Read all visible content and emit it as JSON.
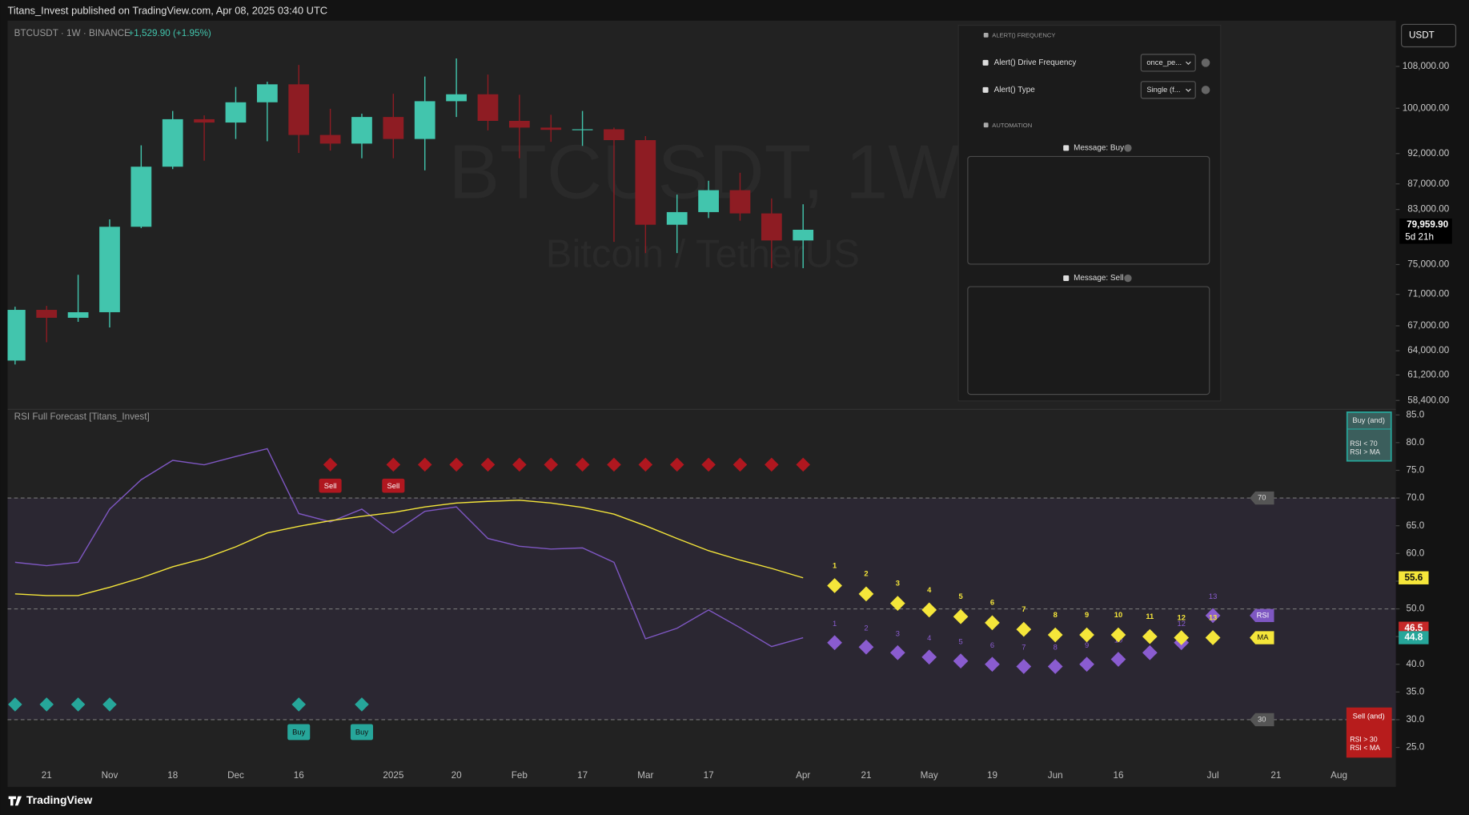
{
  "header": "Titans_Invest published on TradingView.com, Apr 08, 2025 03:40 UTC",
  "footer": "TradingView",
  "settings_panel": {
    "section_1": "ALERT() FREQUENCY",
    "frequency_label": "Alert() Drive Frequency",
    "frequency_value": "once_pe...",
    "type_label": "Alert() Type",
    "type_value": "Single (f...",
    "section_2": "AUTOMATION",
    "message_buy": "Message: Buy",
    "message_sell": "Message: Sell"
  },
  "chart_data": [
    {
      "type": "candlestick",
      "title": "BTCUSDT · 1W · BINANCE",
      "subtitle": "+1,529.90 (+1.95%)",
      "watermark": "BTCUSDT, 1W",
      "watermark_subtitle": "Bitcoin / TetherUS",
      "currency": "USDT",
      "x_labels": [
        "21",
        "Nov",
        "18",
        "Dec",
        "16",
        "2025",
        "20",
        "Feb",
        "17",
        "Mar",
        "17",
        "Apr",
        "21",
        "May",
        "19",
        "Jun",
        "16",
        "Jul",
        "21",
        "Aug"
      ],
      "open": [
        62850,
        69000,
        68000,
        68700,
        80400,
        89800,
        98000,
        97400,
        101100,
        104500,
        95200,
        93700,
        98400,
        94500,
        101300,
        102600,
        97700,
        96500,
        96100,
        96200,
        94300,
        80700,
        82600,
        86000,
        82400,
        78400
      ],
      "high": [
        69400,
        69500,
        73600,
        81500,
        93400,
        99500,
        98700,
        104000,
        105000,
        108300,
        99900,
        99000,
        102700,
        106000,
        109600,
        106400,
        102500,
        98800,
        99500,
        96500,
        95000,
        85300,
        87500,
        88800,
        84700,
        83800
      ],
      "low": [
        62400,
        65000,
        67500,
        66800,
        80200,
        89400,
        90800,
        94500,
        94100,
        92100,
        92500,
        91200,
        91200,
        89200,
        98400,
        96000,
        91200,
        94000,
        93300,
        78200,
        76600,
        76600,
        81700,
        81300,
        74500,
        74500
      ],
      "close": [
        69000,
        68000,
        68700,
        80400,
        89800,
        98000,
        97400,
        101100,
        104500,
        95200,
        93700,
        98400,
        94500,
        101300,
        102600,
        97700,
        96500,
        96100,
        96200,
        94300,
        80700,
        82600,
        86000,
        82400,
        78400,
        79959.9
      ],
      "close_label": "79,959.90",
      "countdown": "5d 21h",
      "up_color": "#42c5ad",
      "down_color": "#8e1c23",
      "log": true,
      "ylim": [
        57650,
        117500
      ],
      "yticks": [
        {
          "value": 108000,
          "label": "108,000.00"
        },
        {
          "value": 100000,
          "label": "100,000.00"
        },
        {
          "value": 92000,
          "label": "92,000.00"
        },
        {
          "value": 87000,
          "label": "87,000.00"
        },
        {
          "value": 83000,
          "label": "83,000.00"
        },
        {
          "value": 75000,
          "label": "75,000.00"
        },
        {
          "value": 71000,
          "label": "71,000.00"
        },
        {
          "value": 67000,
          "label": "67,000.00"
        },
        {
          "value": 64000,
          "label": "64,000.00"
        },
        {
          "value": 61200,
          "label": "61,200.00"
        },
        {
          "value": 58400,
          "label": "58,400.00"
        }
      ]
    },
    {
      "type": "line",
      "title": "RSI Full Forecast [Titans_Invest]",
      "series": [
        {
          "name": "RSI",
          "color": "#7e57c2",
          "values": [
            58.4,
            57.8,
            58.4,
            68,
            73.3,
            76.8,
            76,
            77.5,
            78.9,
            67.2,
            65.7,
            68,
            63.7,
            67.6,
            68.4,
            62.7,
            61.3,
            60.8,
            61,
            58.4,
            44.6,
            46.5,
            49.8,
            46.6,
            43.2,
            44.8
          ]
        },
        {
          "name": "MA",
          "color": "#f5e63a",
          "values": [
            52.7,
            52.4,
            52.4,
            53.9,
            55.6,
            57.6,
            59.1,
            61.2,
            63.7,
            64.9,
            65.9,
            66.7,
            67.4,
            68.4,
            69.1,
            69.4,
            69.6,
            69.1,
            68.3,
            67.1,
            65,
            62.7,
            60.5,
            58.8,
            57.3,
            55.6
          ]
        }
      ],
      "upper": 70,
      "middle": 50,
      "lower": 30,
      "sell_markers": [
        10,
        12,
        13,
        14,
        15,
        16,
        17,
        18,
        19,
        20,
        21,
        22,
        23,
        24,
        25
      ],
      "buy_markers": [
        0,
        1,
        2,
        3,
        9,
        11
      ],
      "sell_tags": [
        10,
        12
      ],
      "buy_tags": [
        9,
        11
      ],
      "sell_label": "Sell",
      "buy_label": "Buy",
      "sell_color": "#b0171f",
      "buy_color": "#26a69a",
      "forecast": {
        "steps": [
          1,
          2,
          3,
          4,
          5,
          6,
          7,
          8,
          9,
          10,
          11,
          12,
          13
        ],
        "rsi": [
          43.9,
          43.1,
          42.1,
          41.3,
          40.6,
          40,
          39.6,
          39.6,
          40,
          40.9,
          42.1,
          43.9,
          48.8
        ],
        "ma": [
          54.2,
          52.7,
          51,
          49.8,
          48.6,
          47.5,
          46.3,
          45.3,
          45.3,
          45.3,
          45,
          44.8,
          44.8
        ]
      },
      "value_badges": [
        55.6,
        46.5,
        44.8
      ],
      "value_badge_colors": [
        "#f5e63a",
        "#c62828",
        "#26a69a"
      ],
      "buy_box": {
        "title": "Buy (and)",
        "lines": [
          "RSI < 70",
          "RSI > MA"
        ]
      },
      "sell_box": {
        "title": "Sell (and)",
        "lines": [
          "RSI > 30",
          "RSI < MA"
        ]
      },
      "ylim": [
        22.1,
        86
      ],
      "yticks": [
        {
          "value": 85,
          "label": "85.0"
        },
        {
          "value": 80,
          "label": "80.0"
        },
        {
          "value": 75,
          "label": "75.0"
        },
        {
          "value": 70,
          "label": "70.0"
        },
        {
          "value": 65,
          "label": "65.0"
        },
        {
          "value": 60,
          "label": "60.0"
        },
        {
          "value": 55,
          "label": "55.0"
        },
        {
          "value": 50,
          "label": "50.0"
        },
        {
          "value": 45,
          "label": "45.0"
        },
        {
          "value": 40,
          "label": "40.0"
        },
        {
          "value": 35,
          "label": "35.0"
        },
        {
          "value": 30,
          "label": "30.0"
        },
        {
          "value": 25,
          "label": "25.0"
        }
      ]
    }
  ]
}
